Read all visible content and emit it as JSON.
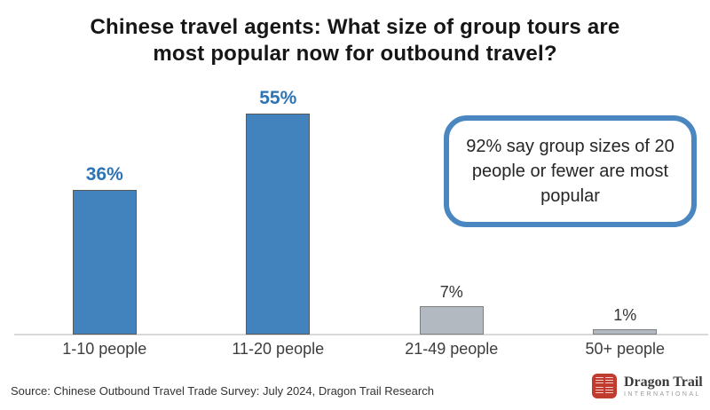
{
  "title": {
    "lines": [
      "Chinese travel agents: What size of group tours are",
      "most popular now for outbound travel?"
    ]
  },
  "chart_data": {
    "type": "bar",
    "title": "Chinese travel agents: What size of group tours are most popular now for outbound travel?",
    "categories": [
      "1-10 people",
      "11-20 people",
      "21-49 people",
      "50+ people"
    ],
    "values": [
      36,
      55,
      7,
      1
    ],
    "value_labels": [
      "36%",
      "55%",
      "7%",
      "1%"
    ],
    "unit": "%",
    "xlabel": "",
    "ylabel": "",
    "ylim": [
      0,
      60
    ],
    "grid": false,
    "legend": false,
    "annotation": "92% say group sizes of 20 people or fewer are most popular",
    "bar_styles": [
      {
        "fill": "#4283bd",
        "border": "#595959",
        "label_color": "#2e74b5",
        "label_bold": true
      },
      {
        "fill": "#4283bd",
        "border": "#595959",
        "label_color": "#2e74b5",
        "label_bold": true
      },
      {
        "fill": "#b2b9c0",
        "border": "#7f7f7f",
        "label_color": "#333333",
        "label_bold": false
      },
      {
        "fill": "#b2b9c0",
        "border": "#7f7f7f",
        "label_color": "#333333",
        "label_bold": false
      }
    ],
    "colors": {
      "axis_line": "#d9d9d9"
    }
  },
  "callout": {
    "text": "92% say group sizes of 20 people or fewer are most popular",
    "border_color": "#4a86c0"
  },
  "footer": {
    "source": "Source: Chinese Outbound Travel Trade Survey: July 2024, Dragon Trail Research",
    "logo": {
      "seal_characters": "国龙际道",
      "seal_color": "#c23b2f",
      "brand": "Dragon Trail",
      "subbrand": "INTERNATIONAL"
    }
  }
}
